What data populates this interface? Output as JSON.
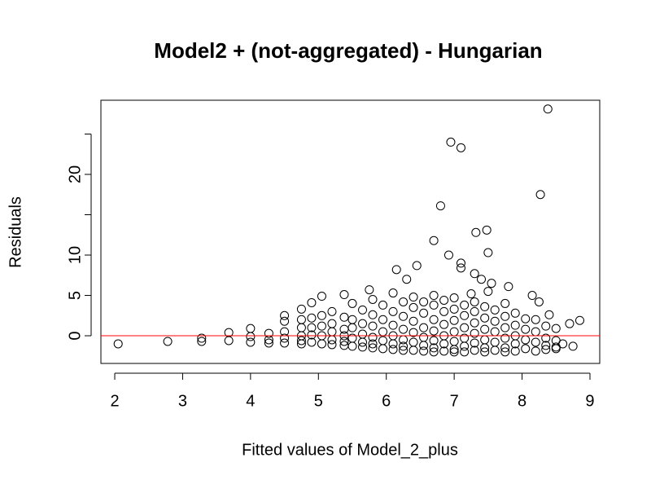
{
  "chart_data": {
    "type": "scatter",
    "title": "Model2 + (not-aggregated) - Hungarian",
    "x_label": "Fitted values of Model_2_plus",
    "y_label": "Residuals",
    "color": "#000000",
    "reference_line": {
      "y": 0,
      "color": "#ff0000"
    },
    "xlim": [
      1.796,
      9.144
    ],
    "ylim": [
      -3.43,
      29.19
    ],
    "xticks": [
      2,
      3,
      4,
      5,
      6,
      7,
      8,
      9
    ],
    "yticks": [
      0,
      5,
      10,
      {
        "value": 15,
        "label": null
      },
      20,
      {
        "value": 25,
        "label": null
      }
    ],
    "x": [
      2.05,
      2.78,
      3.28,
      3.28,
      3.68,
      3.68,
      4.0,
      4.0,
      4.0,
      4.27,
      4.27,
      4.27,
      4.5,
      4.5,
      4.5,
      4.5,
      4.5,
      4.75,
      4.75,
      4.75,
      4.75,
      4.75,
      4.75,
      4.9,
      4.9,
      4.9,
      4.9,
      4.9,
      5.05,
      5.05,
      5.05,
      5.05,
      5.05,
      5.2,
      5.2,
      5.2,
      5.2,
      5.2,
      5.38,
      5.38,
      5.38,
      5.38,
      5.38,
      5.38,
      5.5,
      5.5,
      5.5,
      5.5,
      5.5,
      5.65,
      5.65,
      5.65,
      5.65,
      5.65,
      5.75,
      5.8,
      5.8,
      5.8,
      5.8,
      5.8,
      5.8,
      5.95,
      5.95,
      5.95,
      5.95,
      5.95,
      6.1,
      6.1,
      6.1,
      6.1,
      6.1,
      6.1,
      6.15,
      6.25,
      6.25,
      6.25,
      6.25,
      6.25,
      6.25,
      6.3,
      6.4,
      6.4,
      6.4,
      6.4,
      6.4,
      6.4,
      6.45,
      6.55,
      6.55,
      6.55,
      6.55,
      6.55,
      6.55,
      6.7,
      6.7,
      6.7,
      6.7,
      6.7,
      6.7,
      6.7,
      6.7,
      6.8,
      6.85,
      6.85,
      6.85,
      6.85,
      6.85,
      6.85,
      6.92,
      6.95,
      7.0,
      7.0,
      7.0,
      7.0,
      7.0,
      7.0,
      7.0,
      7.1,
      7.1,
      7.1,
      7.15,
      7.15,
      7.15,
      7.15,
      7.15,
      7.15,
      7.25,
      7.3,
      7.3,
      7.3,
      7.3,
      7.3,
      7.3,
      7.3,
      7.32,
      7.4,
      7.45,
      7.45,
      7.45,
      7.45,
      7.45,
      7.45,
      7.48,
      7.5,
      7.5,
      7.55,
      7.6,
      7.6,
      7.6,
      7.6,
      7.6,
      7.75,
      7.75,
      7.75,
      7.75,
      7.75,
      7.75,
      7.8,
      7.9,
      7.9,
      7.9,
      7.9,
      7.9,
      8.05,
      8.05,
      8.05,
      8.05,
      8.15,
      8.2,
      8.2,
      8.2,
      8.2,
      8.25,
      8.27,
      8.35,
      8.35,
      8.35,
      8.35,
      8.38,
      8.4,
      8.5,
      8.5,
      8.5,
      8.5,
      8.6,
      8.7,
      8.75,
      8.85
    ],
    "values": [
      -1,
      -0.7,
      -0.3,
      -0.7,
      0.4,
      -0.6,
      0.9,
      -0.1,
      -0.8,
      0.3,
      -0.5,
      -0.9,
      2.5,
      1.8,
      0.5,
      -0.3,
      -0.9,
      3.3,
      2,
      1,
      0,
      -0.6,
      -1,
      4.1,
      2.2,
      1,
      0.1,
      -0.8,
      4.9,
      2.5,
      1.2,
      0,
      -1,
      3,
      1.5,
      0.5,
      -0.5,
      -1.1,
      5.1,
      2.3,
      0.8,
      0,
      -0.7,
      -1.2,
      4,
      2,
      1,
      -0.3,
      -1.3,
      3.2,
      1.5,
      0.2,
      -0.8,
      -1.4,
      5.7,
      4.5,
      2.6,
      1.2,
      -0.2,
      -1,
      -1.5,
      3.8,
      2,
      0.5,
      -0.6,
      -1.6,
      5.3,
      3,
      1.3,
      0,
      -1,
      -1.7,
      8.2,
      4.2,
      2.4,
      0.8,
      -0.5,
      -1.3,
      -1.8,
      7,
      4.8,
      3.5,
      1.8,
      0.4,
      -0.8,
      -1.8,
      8.7,
      4.2,
      2.8,
      1,
      -0.2,
      -1.2,
      -1.9,
      11.8,
      5,
      3.8,
      2,
      0.6,
      -0.6,
      -1.5,
      -2,
      16.1,
      4.4,
      3,
      1.4,
      0,
      -1,
      -1.9,
      10,
      24,
      4.7,
      3.3,
      1.9,
      0.5,
      -0.7,
      -1.7,
      -2,
      23.3,
      9,
      8.4,
      3.8,
      2.5,
      1,
      -0.3,
      -1.3,
      -2,
      5.2,
      7.7,
      4.2,
      3,
      1.6,
      0.3,
      -0.9,
      -1.8,
      12.8,
      7,
      3.6,
      2.2,
      0.8,
      -0.5,
      -1.5,
      -2,
      13.1,
      10.3,
      5.5,
      6.5,
      3.2,
      1.8,
      0.5,
      -0.8,
      -1.8,
      4,
      2.4,
      1,
      -0.3,
      -1.5,
      -2,
      6.1,
      2.8,
      1.3,
      0,
      -1,
      -1.9,
      2.1,
      0.8,
      -0.5,
      -1.6,
      5,
      2,
      0.5,
      -0.8,
      -1.9,
      4.2,
      17.5,
      1.2,
      -0.3,
      -1.2,
      -1.7,
      28.1,
      2.6,
      0.9,
      -0.6,
      -1.4,
      -1.6,
      -1,
      1.5,
      -1.3,
      1.9
    ]
  }
}
